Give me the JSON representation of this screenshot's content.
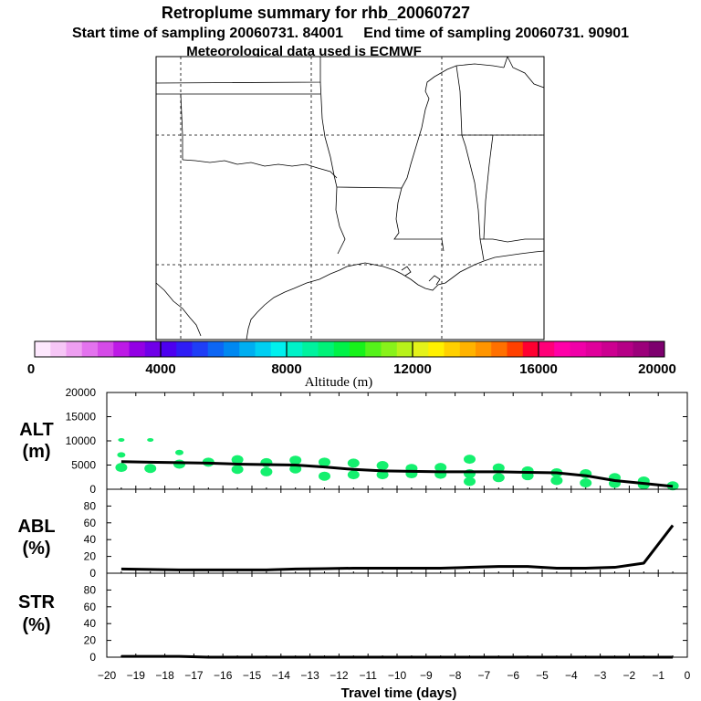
{
  "title": {
    "line1": "Retroplume summary for rhb_20060727",
    "line2": "Start time of sampling 20060731. 84001     End time of sampling 20060731. 90901",
    "line3": "Meteorological data used is ECMWF"
  },
  "colorbar": {
    "colors": [
      "#fde8fd",
      "#f6c6f6",
      "#ee9ff1",
      "#e373ee",
      "#d54be8",
      "#bd1ae6",
      "#9300e4",
      "#6f00e8",
      "#4d00f0",
      "#2f1df5",
      "#1f3ef6",
      "#0d66f4",
      "#0088f0",
      "#00aef0",
      "#00cff2",
      "#00f0ee",
      "#00f2c8",
      "#00f29e",
      "#00f278",
      "#00f248",
      "#17f21a",
      "#55f21a",
      "#88f21a",
      "#b8f21a",
      "#e4f21a",
      "#fff000",
      "#ffd000",
      "#ffb300",
      "#ff9500",
      "#ff7000",
      "#ff4000",
      "#ff0030",
      "#ff0078",
      "#ff00a8",
      "#f000a8",
      "#e0009b",
      "#cc0090",
      "#b50086",
      "#9b007a",
      "#7d006e"
    ],
    "ticks": [
      "0",
      "4000",
      "8000",
      "12000",
      "16000",
      "20000"
    ],
    "label": "Altitude (m)"
  },
  "chart_data": [
    {
      "name": "ALT",
      "type": "line",
      "ylabel": [
        "ALT",
        "(m)"
      ],
      "ylim": [
        0,
        20000
      ],
      "yticks": [
        0,
        5000,
        10000,
        15000,
        20000
      ],
      "yticklabels": [
        "0",
        "5000",
        "10000",
        "15000",
        "20000"
      ],
      "x": [
        -19.5,
        -18.5,
        -17.5,
        -16.5,
        -15.5,
        -14.5,
        -13.5,
        -12.5,
        -11.5,
        -10.5,
        -9.5,
        -8.5,
        -7.5,
        -6.5,
        -5.5,
        -4.5,
        -3.5,
        -2.5,
        -1.5,
        -0.5
      ],
      "y": [
        5700,
        5600,
        5500,
        5400,
        5200,
        5100,
        5000,
        4600,
        4100,
        3800,
        3700,
        3600,
        3600,
        3600,
        3500,
        3400,
        2800,
        1800,
        1200,
        600
      ],
      "scatter": [
        [
          -19.5,
          10200
        ],
        [
          -19.5,
          7100
        ],
        [
          -19.5,
          4500
        ],
        [
          -18.5,
          10200
        ],
        [
          -18.5,
          4300
        ],
        [
          -17.5,
          7600
        ],
        [
          -17.5,
          5200
        ],
        [
          -16.5,
          5600
        ],
        [
          -15.5,
          6100
        ],
        [
          -15.5,
          4100
        ],
        [
          -14.5,
          5500
        ],
        [
          -14.5,
          3600
        ],
        [
          -13.5,
          6000
        ],
        [
          -13.5,
          4200
        ],
        [
          -12.5,
          5600
        ],
        [
          -12.5,
          2700
        ],
        [
          -11.5,
          5400
        ],
        [
          -11.5,
          3000
        ],
        [
          -10.5,
          4900
        ],
        [
          -10.5,
          3000
        ],
        [
          -9.5,
          4300
        ],
        [
          -9.5,
          3200
        ],
        [
          -8.5,
          4500
        ],
        [
          -8.5,
          3100
        ],
        [
          -7.5,
          6200
        ],
        [
          -7.5,
          3200
        ],
        [
          -7.5,
          1600
        ],
        [
          -6.5,
          4400
        ],
        [
          -6.5,
          2400
        ],
        [
          -5.5,
          3800
        ],
        [
          -5.5,
          2800
        ],
        [
          -4.5,
          3400
        ],
        [
          -4.5,
          1800
        ],
        [
          -3.5,
          3200
        ],
        [
          -3.5,
          1300
        ],
        [
          -2.5,
          2400
        ],
        [
          -2.5,
          1200
        ],
        [
          -1.5,
          1700
        ],
        [
          -1.5,
          900
        ],
        [
          -0.5,
          700
        ]
      ]
    },
    {
      "name": "ABL",
      "type": "line",
      "ylabel": [
        "ABL",
        "(%)"
      ],
      "ylim": [
        0,
        100
      ],
      "yticks": [
        0,
        20,
        40,
        60,
        80
      ],
      "yticklabels": [
        "0",
        "20",
        "40",
        "60",
        "80"
      ],
      "x": [
        -19.5,
        -18.5,
        -17.5,
        -16.5,
        -15.5,
        -14.5,
        -13.5,
        -12.5,
        -11.5,
        -10.5,
        -9.5,
        -8.5,
        -7.5,
        -6.5,
        -5.5,
        -4.5,
        -3.5,
        -2.5,
        -1.5,
        -0.5
      ],
      "y": [
        5,
        4.5,
        4,
        4,
        4,
        4,
        5,
        5.5,
        6,
        6,
        6,
        6,
        7,
        8,
        8,
        6,
        6,
        7,
        12,
        57
      ]
    },
    {
      "name": "STR",
      "type": "line",
      "ylabel": [
        "STR",
        "(%)"
      ],
      "ylim": [
        0,
        100
      ],
      "yticks": [
        0,
        20,
        40,
        60,
        80
      ],
      "yticklabels": [
        "0",
        "20",
        "40",
        "60",
        "80"
      ],
      "xlabel": "Travel time (days)",
      "xlim": [
        -20,
        0
      ],
      "xticklabels": [
        "−20",
        "−19",
        "−18",
        "−17",
        "−16",
        "−15",
        "−14",
        "−13",
        "−12",
        "−11",
        "−10",
        "−9",
        "−8",
        "−7",
        "−6",
        "−5",
        "−4",
        "−3",
        "−2",
        "−1",
        "0"
      ],
      "x": [
        -19.5,
        -18.5,
        -17.5,
        -16.5,
        -15.5,
        -14.5,
        -13.5,
        -12.5,
        -11.5,
        -10.5,
        -9.5,
        -8.5,
        -7.5,
        -6.5,
        -5.5,
        -4.5,
        -3.5,
        -2.5,
        -1.5,
        -0.5
      ],
      "y": [
        1,
        1,
        1,
        0,
        0,
        0,
        0,
        0,
        0,
        0,
        0,
        0,
        0,
        0,
        0,
        0,
        0,
        0,
        0,
        0
      ]
    }
  ]
}
